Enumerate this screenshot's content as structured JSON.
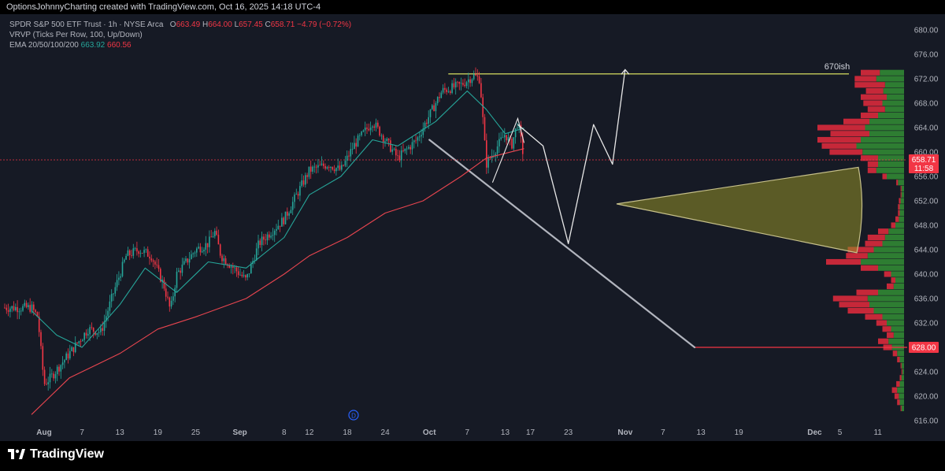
{
  "header": {
    "attribution": "OptionsJohnnyCharting created with TradingView.com, Oct 16, 2025 14:18 UTC-4"
  },
  "legend": {
    "symbol": "SPDR S&P 500 ETF Trust · 1h · NYSE Arca",
    "open_label": "O",
    "open": "663.49",
    "high_label": "H",
    "high": "664.00",
    "low_label": "L",
    "low": "657.45",
    "close_label": "C",
    "close": "658.71",
    "change": "−4.79 (−0.72%)",
    "vrvp": "VRVP (Ticks Per Row, 100, Up/Down)",
    "ema_label": "EMA 20/50/100/200",
    "ema20": "663.92",
    "ema200": "660.56"
  },
  "footer": {
    "brand": "TradingView",
    "logo_icon": "tradingview-logo-icon"
  },
  "colors": {
    "bg": "#161a25",
    "up": "#26a69a",
    "down": "#f23645",
    "ema200": "#e8454f",
    "level": "#c6cc5a",
    "vol_up": "#2e7d32",
    "vol_down": "#c62839"
  },
  "chart_data": {
    "type": "line",
    "title": "SPDR S&P 500 ETF Trust · 1h · NYSE Arca",
    "x_tick_labels": [
      "Aug",
      "7",
      "13",
      "19",
      "25",
      "Sep",
      "8",
      "12",
      "18",
      "24",
      "Oct",
      "7",
      "13",
      "17",
      "23",
      "Nov",
      "7",
      "13",
      "19",
      "Dec",
      "5",
      "11"
    ],
    "y_tick_labels": [
      "680.00",
      "676.00",
      "672.00",
      "668.00",
      "664.00",
      "660.00",
      "656.00",
      "652.00",
      "648.00",
      "644.00",
      "640.00",
      "636.00",
      "632.00",
      "628.00",
      "624.00",
      "620.00",
      "616.00"
    ],
    "ylim": [
      616,
      682
    ],
    "price_path": [
      {
        "d": "2025-07-30",
        "p": 634.5
      },
      {
        "d": "2025-07-31",
        "p": 633
      },
      {
        "d": "2025-08-01",
        "p": 622
      },
      {
        "d": "2025-08-02",
        "p": 623
      },
      {
        "d": "2025-08-05",
        "p": 627
      },
      {
        "d": "2025-08-08",
        "p": 631
      },
      {
        "d": "2025-08-10",
        "p": 630.5
      },
      {
        "d": "2025-08-12",
        "p": 637
      },
      {
        "d": "2025-08-14",
        "p": 643
      },
      {
        "d": "2025-08-16",
        "p": 644
      },
      {
        "d": "2025-08-18",
        "p": 643
      },
      {
        "d": "2025-08-20",
        "p": 638
      },
      {
        "d": "2025-08-21",
        "p": 634
      },
      {
        "d": "2025-08-22",
        "p": 640
      },
      {
        "d": "2025-08-25",
        "p": 644
      },
      {
        "d": "2025-08-27",
        "p": 645
      },
      {
        "d": "2025-08-28",
        "p": 647
      },
      {
        "d": "2025-08-29",
        "p": 643
      },
      {
        "d": "2025-09-02",
        "p": 639
      },
      {
        "d": "2025-09-04",
        "p": 645
      },
      {
        "d": "2025-09-08",
        "p": 649
      },
      {
        "d": "2025-09-10",
        "p": 653
      },
      {
        "d": "2025-09-12",
        "p": 657
      },
      {
        "d": "2025-09-15",
        "p": 658
      },
      {
        "d": "2025-09-17",
        "p": 657
      },
      {
        "d": "2025-09-19",
        "p": 661
      },
      {
        "d": "2025-09-22",
        "p": 665
      },
      {
        "d": "2025-09-24",
        "p": 662
      },
      {
        "d": "2025-09-26",
        "p": 659
      },
      {
        "d": "2025-09-29",
        "p": 662
      },
      {
        "d": "2025-10-01",
        "p": 666
      },
      {
        "d": "2025-10-03",
        "p": 670
      },
      {
        "d": "2025-10-06",
        "p": 671
      },
      {
        "d": "2025-10-08",
        "p": 672.5
      },
      {
        "d": "2025-10-09",
        "p": 672
      },
      {
        "d": "2025-10-10",
        "p": 658
      },
      {
        "d": "2025-10-13",
        "p": 663
      },
      {
        "d": "2025-10-14",
        "p": 661
      },
      {
        "d": "2025-10-15",
        "p": 665
      },
      {
        "d": "2025-10-16",
        "p": 658.71
      }
    ],
    "ema20": [
      {
        "d": "2025-07-30",
        "p": 634
      },
      {
        "d": "2025-08-03",
        "p": 630
      },
      {
        "d": "2025-08-07",
        "p": 628
      },
      {
        "d": "2025-08-13",
        "p": 635
      },
      {
        "d": "2025-08-17",
        "p": 641
      },
      {
        "d": "2025-08-22",
        "p": 637
      },
      {
        "d": "2025-08-27",
        "p": 642
      },
      {
        "d": "2025-09-02",
        "p": 641
      },
      {
        "d": "2025-09-08",
        "p": 646
      },
      {
        "d": "2025-09-12",
        "p": 653
      },
      {
        "d": "2025-09-17",
        "p": 656
      },
      {
        "d": "2025-09-22",
        "p": 662
      },
      {
        "d": "2025-09-26",
        "p": 661
      },
      {
        "d": "2025-10-02",
        "p": 665
      },
      {
        "d": "2025-10-07",
        "p": 670
      },
      {
        "d": "2025-10-10",
        "p": 667
      },
      {
        "d": "2025-10-13",
        "p": 663
      },
      {
        "d": "2025-10-16",
        "p": 663.92
      }
    ],
    "ema200": [
      {
        "d": "2025-07-30",
        "p": 617
      },
      {
        "d": "2025-08-05",
        "p": 623
      },
      {
        "d": "2025-08-13",
        "p": 627
      },
      {
        "d": "2025-08-19",
        "p": 631
      },
      {
        "d": "2025-08-25",
        "p": 633
      },
      {
        "d": "2025-09-02",
        "p": 636
      },
      {
        "d": "2025-09-08",
        "p": 640
      },
      {
        "d": "2025-09-12",
        "p": 643
      },
      {
        "d": "2025-09-18",
        "p": 646
      },
      {
        "d": "2025-09-24",
        "p": 650
      },
      {
        "d": "2025-09-30",
        "p": 652
      },
      {
        "d": "2025-10-06",
        "p": 656
      },
      {
        "d": "2025-10-10",
        "p": 659
      },
      {
        "d": "2025-10-16",
        "p": 660.56
      }
    ],
    "last_price": "658.71",
    "countdown": "11:58",
    "level_label": "628.00",
    "level_price": 628,
    "annotation_text": "670ish",
    "annotation_price": 672.8,
    "projection": [
      {
        "d": "2025-10-15",
        "p": 664.5
      },
      {
        "d": "2025-10-19",
        "p": 661
      },
      {
        "d": "2025-10-23",
        "p": 645
      },
      {
        "d": "2025-10-27",
        "p": 664.5
      },
      {
        "d": "2025-10-30",
        "p": 658
      },
      {
        "d": "2025-11-01",
        "p": 673.5
      }
    ],
    "trendline": [
      {
        "d": "2025-10-01",
        "p": 662
      },
      {
        "d": "2025-11-12",
        "p": 628
      }
    ],
    "rising_wedge": [
      {
        "d": "2025-10-11",
        "p": 655
      },
      {
        "d": "2025-10-15",
        "p": 665.5
      },
      {
        "d": "2025-10-16",
        "p": 661.5
      }
    ],
    "dividend_marker": {
      "d": "2025-09-19",
      "label": "D"
    },
    "volume_profile": [
      {
        "p": 673,
        "up": 0.28,
        "down": 0.22
      },
      {
        "p": 672,
        "up": 0.32,
        "down": 0.25
      },
      {
        "p": 671,
        "up": 0.22,
        "down": 0.35
      },
      {
        "p": 670,
        "up": 0.24,
        "down": 0.2
      },
      {
        "p": 669,
        "up": 0.2,
        "down": 0.3
      },
      {
        "p": 668,
        "up": 0.25,
        "down": 0.22
      },
      {
        "p": 667,
        "up": 0.22,
        "down": 0.2
      },
      {
        "p": 666,
        "up": 0.3,
        "down": 0.2
      },
      {
        "p": 665,
        "up": 0.4,
        "down": 0.3
      },
      {
        "p": 664,
        "up": 0.45,
        "down": 0.55
      },
      {
        "p": 663,
        "up": 0.4,
        "down": 0.45
      },
      {
        "p": 662,
        "up": 0.5,
        "down": 0.5
      },
      {
        "p": 661,
        "up": 0.55,
        "down": 0.4
      },
      {
        "p": 660,
        "up": 0.48,
        "down": 0.38
      },
      {
        "p": 659,
        "up": 0.3,
        "down": 0.2
      },
      {
        "p": 658,
        "up": 0.3,
        "down": 0.12
      },
      {
        "p": 657,
        "up": 0.32,
        "down": 0.1
      },
      {
        "p": 656,
        "up": 0.2,
        "down": 0.05
      },
      {
        "p": 655,
        "up": 0.07,
        "down": 0.02
      },
      {
        "p": 654,
        "up": 0.03,
        "down": 0.01
      },
      {
        "p": 653,
        "up": 0.03,
        "down": 0.01
      },
      {
        "p": 652,
        "up": 0.04,
        "down": 0.02
      },
      {
        "p": 651,
        "up": 0.05,
        "down": 0.02
      },
      {
        "p": 650,
        "up": 0.05,
        "down": 0.02
      },
      {
        "p": 649,
        "up": 0.06,
        "down": 0.04
      },
      {
        "p": 648,
        "up": 0.1,
        "down": 0.05
      },
      {
        "p": 647,
        "up": 0.18,
        "down": 0.12
      },
      {
        "p": 646,
        "up": 0.22,
        "down": 0.2
      },
      {
        "p": 645,
        "up": 0.25,
        "down": 0.2
      },
      {
        "p": 644,
        "up": 0.35,
        "down": 0.3
      },
      {
        "p": 643,
        "up": 0.42,
        "down": 0.25
      },
      {
        "p": 642,
        "up": 0.5,
        "down": 0.4
      },
      {
        "p": 641,
        "up": 0.3,
        "down": 0.2
      },
      {
        "p": 640,
        "up": 0.15,
        "down": 0.08
      },
      {
        "p": 639,
        "up": 0.1,
        "down": 0.05
      },
      {
        "p": 638,
        "up": 0.12,
        "down": 0.08
      },
      {
        "p": 637,
        "up": 0.3,
        "down": 0.25
      },
      {
        "p": 636,
        "up": 0.42,
        "down": 0.4
      },
      {
        "p": 635,
        "up": 0.4,
        "down": 0.35
      },
      {
        "p": 634,
        "up": 0.35,
        "down": 0.3
      },
      {
        "p": 633,
        "up": 0.25,
        "down": 0.2
      },
      {
        "p": 632,
        "up": 0.2,
        "down": 0.12
      },
      {
        "p": 631,
        "up": 0.15,
        "down": 0.1
      },
      {
        "p": 630,
        "up": 0.12,
        "down": 0.08
      },
      {
        "p": 629,
        "up": 0.18,
        "down": 0.12
      },
      {
        "p": 628,
        "up": 0.14,
        "down": 0.1
      },
      {
        "p": 627,
        "up": 0.08,
        "down": 0.05
      },
      {
        "p": 626,
        "up": 0.05,
        "down": 0.03
      },
      {
        "p": 625,
        "up": 0.03,
        "down": 0.01
      },
      {
        "p": 624,
        "up": 0.02,
        "down": 0.01
      },
      {
        "p": 623,
        "up": 0.03,
        "down": 0.02
      },
      {
        "p": 622,
        "up": 0.05,
        "down": 0.04
      },
      {
        "p": 621,
        "up": 0.08,
        "down": 0.06
      },
      {
        "p": 620,
        "up": 0.06,
        "down": 0.05
      },
      {
        "p": 619,
        "up": 0.05,
        "down": 0.03
      },
      {
        "p": 618,
        "up": 0.03,
        "down": 0.01
      }
    ]
  }
}
